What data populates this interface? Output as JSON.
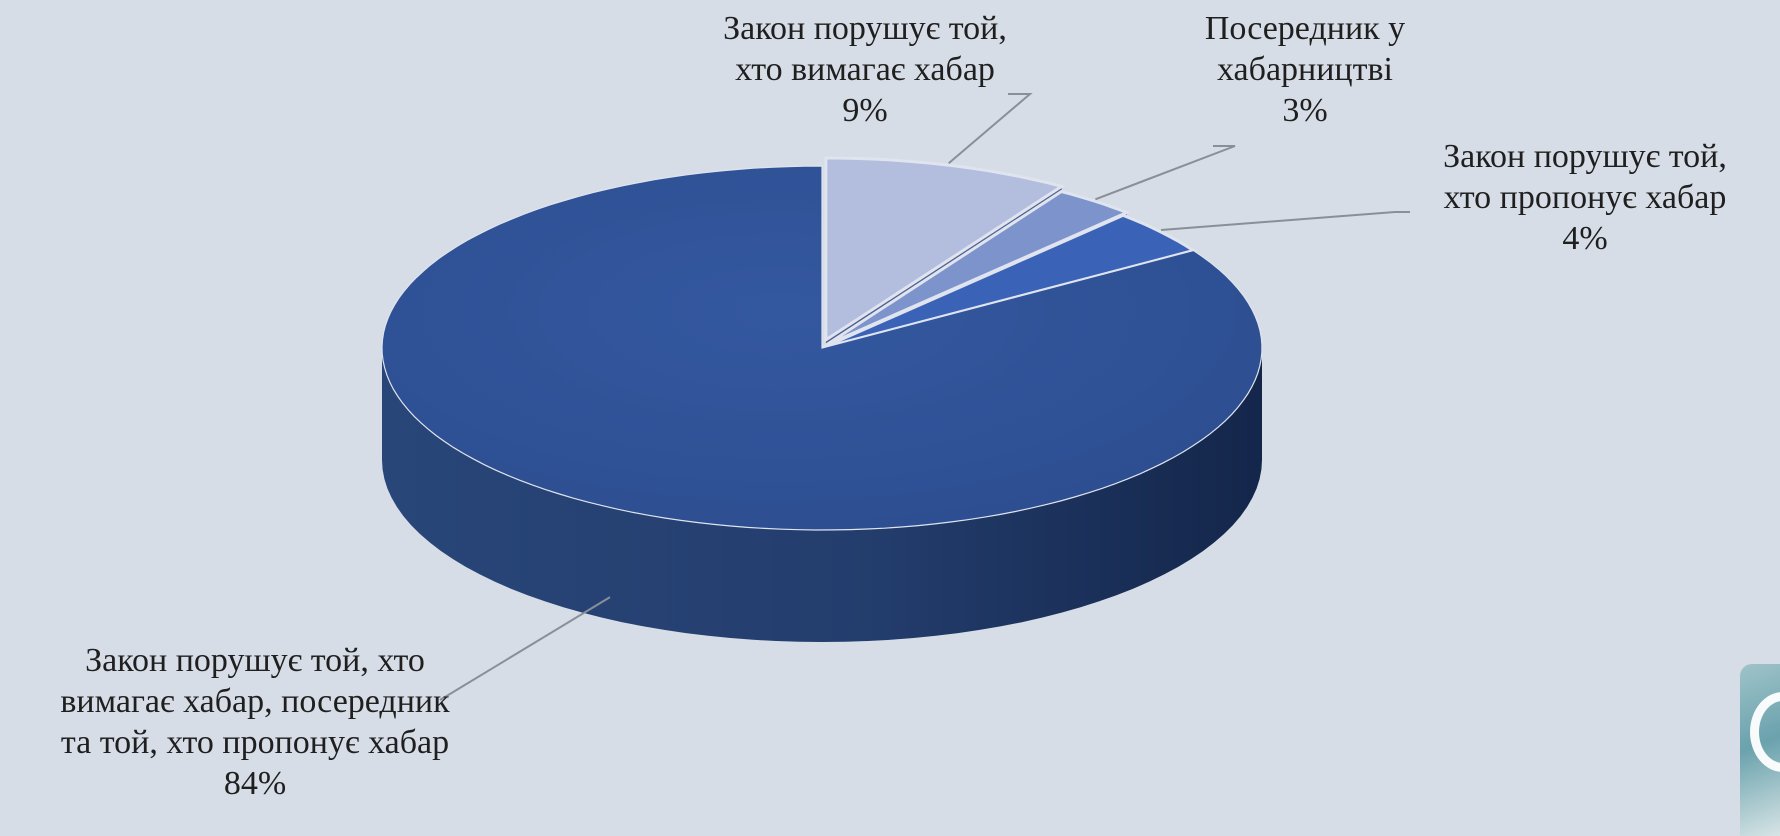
{
  "chart_data": {
    "type": "pie",
    "three_d": true,
    "title": "",
    "slices": [
      {
        "label": "Закон порушує  той, хто вимагає хабар,  посередник та той, хто пропонує хабар",
        "lines": [
          "Закон порушує  той, хто",
          "вимагає хабар,  посередник",
          "та той, хто пропонує хабар"
        ],
        "value": 84,
        "value_label": "84%",
        "color": "#2f5196"
      },
      {
        "label": "Закон порушує  той, хто вимагає хабар",
        "lines": [
          "Закон порушує  той,",
          "хто вимагає хабар"
        ],
        "value": 9,
        "value_label": "9%",
        "color": "#b3bedf"
      },
      {
        "label": "Посередник у хабарництві",
        "lines": [
          "Посередник у",
          "хабарництві"
        ],
        "value": 3,
        "value_label": "3%",
        "color": "#7d93cc"
      },
      {
        "label": "Закон порушує  той, хто пропонує хабар",
        "lines": [
          "Закон порушує  той,",
          "хто пропонує хабар"
        ],
        "value": 4,
        "value_label": "4%",
        "color": "#3a63b8"
      }
    ],
    "legend": "none",
    "data_labels": "outside with leader lines"
  }
}
